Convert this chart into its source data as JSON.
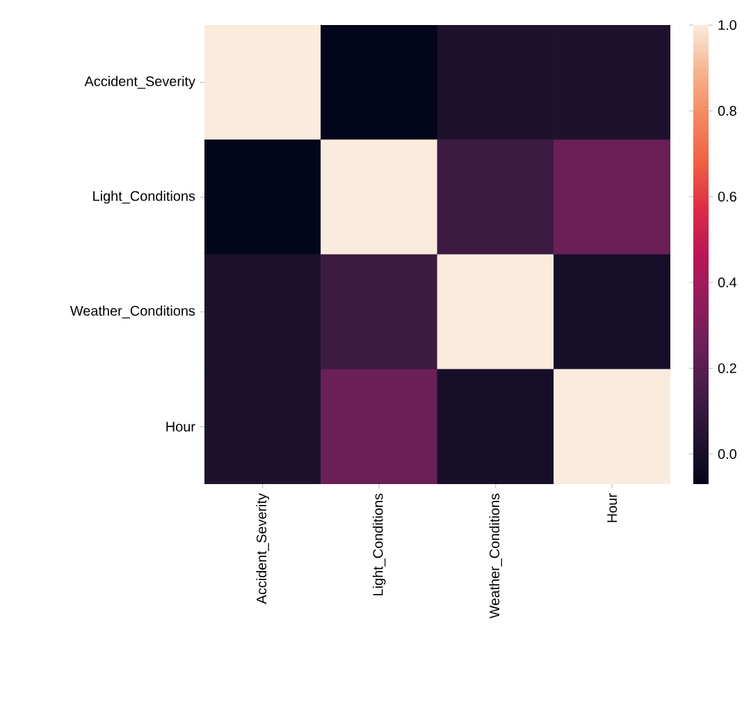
{
  "chart_data": {
    "type": "heatmap",
    "categories": [
      "Accident_Severity",
      "Light_Conditions",
      "Weather_Conditions",
      "Hour"
    ],
    "y_categories": [
      "Accident_Severity",
      "Light_Conditions",
      "Weather_Conditions",
      "Hour"
    ],
    "cells": [
      [
        1.0,
        -0.07,
        0.02,
        0.02
      ],
      [
        -0.07,
        1.0,
        0.12,
        0.25
      ],
      [
        0.02,
        0.12,
        1.0,
        0.0
      ],
      [
        0.02,
        0.25,
        0.0,
        1.0
      ]
    ],
    "clim": [
      -0.07,
      1.0
    ],
    "cticks": [
      {
        "value": 0.0,
        "label": "0.0"
      },
      {
        "value": 0.2,
        "label": "0.2"
      },
      {
        "value": 0.4,
        "label": "0.4"
      },
      {
        "value": 0.6,
        "label": "0.6"
      },
      {
        "value": 0.8,
        "label": "0.8"
      },
      {
        "value": 1.0,
        "label": "1.0"
      }
    ]
  }
}
